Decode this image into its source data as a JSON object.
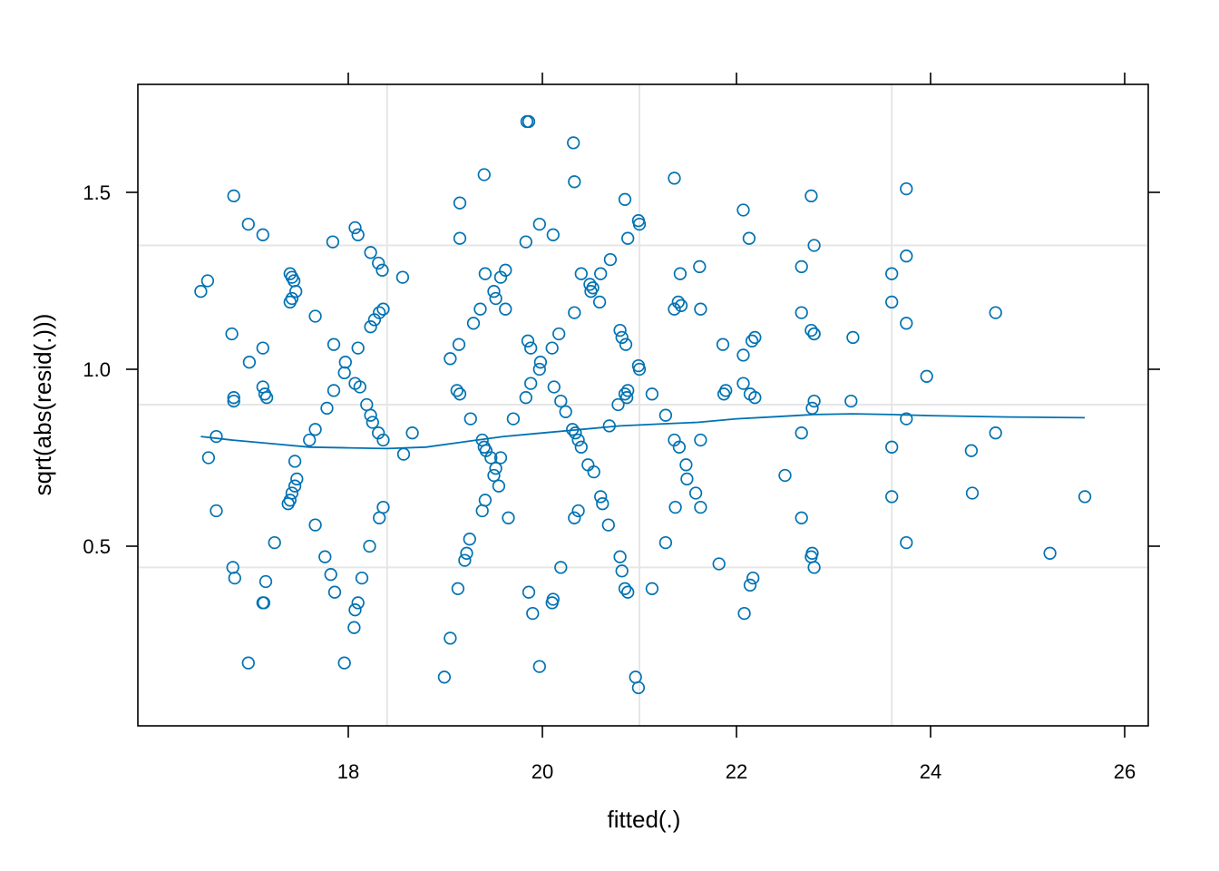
{
  "chart_data": {
    "type": "scatter",
    "title": "",
    "xlabel": "fitted(.)",
    "ylabel": "sqrt(abs(resid(.)))",
    "xlim": [
      16.0,
      26.2
    ],
    "ylim": [
      0.0,
      1.8
    ],
    "xticks": [
      18,
      20,
      22,
      24,
      26
    ],
    "yticks": [
      0.5,
      1.0,
      1.5
    ],
    "xtick_labels": [
      "18",
      "20",
      "22",
      "24",
      "26"
    ],
    "ytick_labels": [
      "0.5",
      "1.0",
      "1.5"
    ],
    "grid": true,
    "grid_x": [
      18.4,
      21.0,
      23.6
    ],
    "grid_y": [
      0.44,
      0.9,
      1.35
    ],
    "colors": {
      "points": "#0072B2",
      "smooth": "#0072B2",
      "grid": "#E6E6E6",
      "frame": "#000000"
    },
    "points": [
      [
        16.48,
        1.22
      ],
      [
        16.55,
        1.25
      ],
      [
        16.56,
        0.75
      ],
      [
        16.64,
        0.81
      ],
      [
        16.64,
        0.6
      ],
      [
        16.82,
        1.49
      ],
      [
        16.8,
        1.1
      ],
      [
        16.82,
        0.91
      ],
      [
        16.82,
        0.92
      ],
      [
        16.81,
        0.44
      ],
      [
        16.83,
        0.41
      ],
      [
        16.97,
        1.41
      ],
      [
        16.98,
        1.02
      ],
      [
        16.97,
        0.17
      ],
      [
        17.12,
        1.38
      ],
      [
        17.12,
        1.06
      ],
      [
        17.12,
        0.95
      ],
      [
        17.14,
        0.93
      ],
      [
        17.16,
        0.92
      ],
      [
        17.15,
        0.4
      ],
      [
        17.12,
        0.34
      ],
      [
        17.13,
        0.34
      ],
      [
        17.24,
        0.51
      ],
      [
        17.4,
        1.27
      ],
      [
        17.42,
        1.26
      ],
      [
        17.44,
        1.25
      ],
      [
        17.46,
        1.22
      ],
      [
        17.42,
        1.2
      ],
      [
        17.4,
        1.19
      ],
      [
        17.45,
        0.74
      ],
      [
        17.47,
        0.69
      ],
      [
        17.45,
        0.67
      ],
      [
        17.42,
        0.65
      ],
      [
        17.4,
        0.63
      ],
      [
        17.38,
        0.62
      ],
      [
        17.6,
        0.8
      ],
      [
        17.66,
        0.83
      ],
      [
        17.66,
        1.15
      ],
      [
        17.66,
        0.56
      ],
      [
        17.78,
        0.89
      ],
      [
        17.76,
        0.47
      ],
      [
        17.84,
        1.36
      ],
      [
        17.85,
        1.07
      ],
      [
        17.85,
        0.94
      ],
      [
        17.82,
        0.42
      ],
      [
        17.86,
        0.37
      ],
      [
        17.97,
        1.02
      ],
      [
        17.96,
        0.99
      ],
      [
        17.96,
        0.17
      ],
      [
        18.07,
        1.4
      ],
      [
        18.1,
        1.38
      ],
      [
        18.07,
        0.96
      ],
      [
        18.12,
        0.95
      ],
      [
        18.1,
        1.06
      ],
      [
        18.07,
        0.32
      ],
      [
        18.1,
        0.34
      ],
      [
        18.06,
        0.27
      ],
      [
        18.14,
        0.41
      ],
      [
        18.19,
        0.9
      ],
      [
        18.23,
        0.87
      ],
      [
        18.25,
        0.85
      ],
      [
        18.23,
        1.33
      ],
      [
        18.23,
        1.12
      ],
      [
        18.27,
        1.14
      ],
      [
        18.22,
        0.5
      ],
      [
        18.31,
        1.3
      ],
      [
        18.35,
        1.28
      ],
      [
        18.32,
        1.16
      ],
      [
        18.36,
        1.17
      ],
      [
        18.31,
        0.82
      ],
      [
        18.36,
        0.8
      ],
      [
        18.32,
        0.58
      ],
      [
        18.36,
        0.61
      ],
      [
        18.56,
        1.26
      ],
      [
        18.57,
        0.76
      ],
      [
        18.66,
        0.82
      ],
      [
        18.99,
        0.13
      ],
      [
        19.05,
        0.24
      ],
      [
        19.05,
        1.03
      ],
      [
        19.15,
        1.47
      ],
      [
        19.15,
        1.37
      ],
      [
        19.14,
        1.07
      ],
      [
        19.12,
        0.94
      ],
      [
        19.15,
        0.93
      ],
      [
        19.13,
        0.38
      ],
      [
        19.2,
        0.46
      ],
      [
        19.22,
        0.48
      ],
      [
        19.25,
        0.52
      ],
      [
        19.26,
        0.86
      ],
      [
        19.29,
        1.13
      ],
      [
        19.36,
        1.17
      ],
      [
        19.38,
        0.8
      ],
      [
        19.4,
        0.78
      ],
      [
        19.38,
        0.6
      ],
      [
        19.41,
        0.63
      ],
      [
        19.4,
        1.55
      ],
      [
        19.41,
        1.27
      ],
      [
        19.42,
        0.77
      ],
      [
        19.47,
        0.75
      ],
      [
        19.5,
        1.22
      ],
      [
        19.52,
        1.2
      ],
      [
        19.52,
        0.72
      ],
      [
        19.5,
        0.7
      ],
      [
        19.55,
        0.67
      ],
      [
        19.57,
        1.26
      ],
      [
        19.57,
        0.75
      ],
      [
        19.62,
        1.28
      ],
      [
        19.62,
        1.17
      ],
      [
        19.65,
        0.58
      ],
      [
        19.7,
        0.86
      ],
      [
        19.84,
        1.7
      ],
      [
        19.86,
        1.7
      ],
      [
        19.83,
        1.36
      ],
      [
        19.85,
        1.08
      ],
      [
        19.88,
        1.06
      ],
      [
        19.83,
        0.92
      ],
      [
        19.88,
        0.96
      ],
      [
        19.9,
        0.31
      ],
      [
        19.86,
        0.37
      ],
      [
        19.97,
        1.41
      ],
      [
        19.98,
        1.02
      ],
      [
        19.97,
        1.0
      ],
      [
        19.97,
        0.16
      ],
      [
        20.11,
        1.38
      ],
      [
        20.1,
        1.06
      ],
      [
        20.12,
        0.95
      ],
      [
        20.1,
        0.34
      ],
      [
        20.11,
        0.35
      ],
      [
        20.17,
        1.1
      ],
      [
        20.19,
        0.91
      ],
      [
        20.19,
        0.44
      ],
      [
        20.24,
        0.88
      ],
      [
        20.32,
        1.64
      ],
      [
        20.33,
        1.53
      ],
      [
        20.33,
        1.16
      ],
      [
        20.31,
        0.83
      ],
      [
        20.34,
        0.82
      ],
      [
        20.37,
        0.8
      ],
      [
        20.33,
        0.58
      ],
      [
        20.37,
        0.6
      ],
      [
        20.4,
        1.27
      ],
      [
        20.4,
        0.78
      ],
      [
        20.47,
        0.73
      ],
      [
        20.49,
        1.24
      ],
      [
        20.5,
        1.22
      ],
      [
        20.52,
        1.23
      ],
      [
        20.53,
        0.71
      ],
      [
        20.6,
        1.27
      ],
      [
        20.59,
        1.19
      ],
      [
        20.6,
        0.64
      ],
      [
        20.62,
        0.62
      ],
      [
        20.69,
        0.84
      ],
      [
        20.7,
        1.31
      ],
      [
        20.68,
        0.56
      ],
      [
        20.8,
        1.11
      ],
      [
        20.82,
        1.09
      ],
      [
        20.78,
        0.9
      ],
      [
        20.8,
        0.47
      ],
      [
        20.82,
        0.43
      ],
      [
        20.85,
        1.48
      ],
      [
        20.86,
        1.07
      ],
      [
        20.85,
        0.93
      ],
      [
        20.87,
        0.92
      ],
      [
        20.88,
        1.37
      ],
      [
        20.88,
        0.94
      ],
      [
        20.85,
        0.38
      ],
      [
        20.88,
        0.37
      ],
      [
        20.96,
        0.13
      ],
      [
        20.99,
        0.1
      ],
      [
        20.99,
        1.42
      ],
      [
        21.0,
        1.41
      ],
      [
        20.99,
        1.01
      ],
      [
        21.0,
        1.0
      ],
      [
        21.13,
        0.93
      ],
      [
        21.13,
        0.38
      ],
      [
        21.27,
        0.87
      ],
      [
        21.27,
        0.51
      ],
      [
        21.36,
        1.54
      ],
      [
        21.36,
        1.17
      ],
      [
        21.36,
        0.8
      ],
      [
        21.37,
        0.61
      ],
      [
        21.4,
        1.19
      ],
      [
        21.42,
        1.27
      ],
      [
        21.41,
        0.78
      ],
      [
        21.43,
        1.18
      ],
      [
        21.48,
        0.73
      ],
      [
        21.49,
        0.69
      ],
      [
        21.58,
        0.65
      ],
      [
        21.62,
        1.29
      ],
      [
        21.63,
        1.17
      ],
      [
        21.63,
        0.8
      ],
      [
        21.63,
        0.61
      ],
      [
        21.82,
        0.45
      ],
      [
        21.86,
        1.07
      ],
      [
        21.87,
        0.93
      ],
      [
        21.89,
        0.94
      ],
      [
        22.07,
        1.45
      ],
      [
        22.07,
        1.04
      ],
      [
        22.07,
        0.96
      ],
      [
        22.08,
        0.31
      ],
      [
        22.13,
        1.37
      ],
      [
        22.14,
        0.93
      ],
      [
        22.14,
        0.39
      ],
      [
        22.16,
        1.08
      ],
      [
        22.17,
        0.41
      ],
      [
        22.19,
        1.09
      ],
      [
        22.19,
        0.92
      ],
      [
        22.5,
        0.7
      ],
      [
        22.67,
        1.29
      ],
      [
        22.67,
        1.16
      ],
      [
        22.67,
        0.82
      ],
      [
        22.67,
        0.58
      ],
      [
        22.77,
        1.49
      ],
      [
        22.77,
        1.11
      ],
      [
        22.8,
        1.1
      ],
      [
        22.8,
        1.35
      ],
      [
        22.8,
        1.1
      ],
      [
        22.78,
        0.89
      ],
      [
        22.8,
        0.91
      ],
      [
        22.78,
        0.48
      ],
      [
        22.77,
        0.47
      ],
      [
        22.8,
        0.44
      ],
      [
        23.18,
        0.91
      ],
      [
        23.2,
        1.09
      ],
      [
        23.6,
        1.27
      ],
      [
        23.6,
        1.19
      ],
      [
        23.6,
        0.78
      ],
      [
        23.6,
        0.64
      ],
      [
        23.75,
        1.51
      ],
      [
        23.75,
        1.32
      ],
      [
        23.75,
        1.13
      ],
      [
        23.75,
        0.86
      ],
      [
        23.75,
        0.51
      ],
      [
        23.96,
        0.98
      ],
      [
        24.42,
        0.77
      ],
      [
        24.43,
        0.65
      ],
      [
        24.67,
        1.16
      ],
      [
        24.67,
        0.82
      ],
      [
        25.23,
        0.48
      ],
      [
        25.59,
        0.64
      ]
    ],
    "smooth": [
      [
        16.48,
        0.81
      ],
      [
        16.8,
        0.8
      ],
      [
        17.2,
        0.79
      ],
      [
        17.6,
        0.78
      ],
      [
        18.0,
        0.778
      ],
      [
        18.4,
        0.776
      ],
      [
        18.8,
        0.78
      ],
      [
        19.2,
        0.795
      ],
      [
        19.6,
        0.81
      ],
      [
        20.0,
        0.82
      ],
      [
        20.4,
        0.83
      ],
      [
        20.8,
        0.84
      ],
      [
        21.2,
        0.845
      ],
      [
        21.6,
        0.85
      ],
      [
        22.0,
        0.86
      ],
      [
        22.4,
        0.866
      ],
      [
        22.8,
        0.872
      ],
      [
        23.2,
        0.874
      ],
      [
        23.6,
        0.872
      ],
      [
        24.0,
        0.869
      ],
      [
        24.4,
        0.867
      ],
      [
        24.8,
        0.865
      ],
      [
        25.2,
        0.864
      ],
      [
        25.59,
        0.863
      ]
    ]
  }
}
